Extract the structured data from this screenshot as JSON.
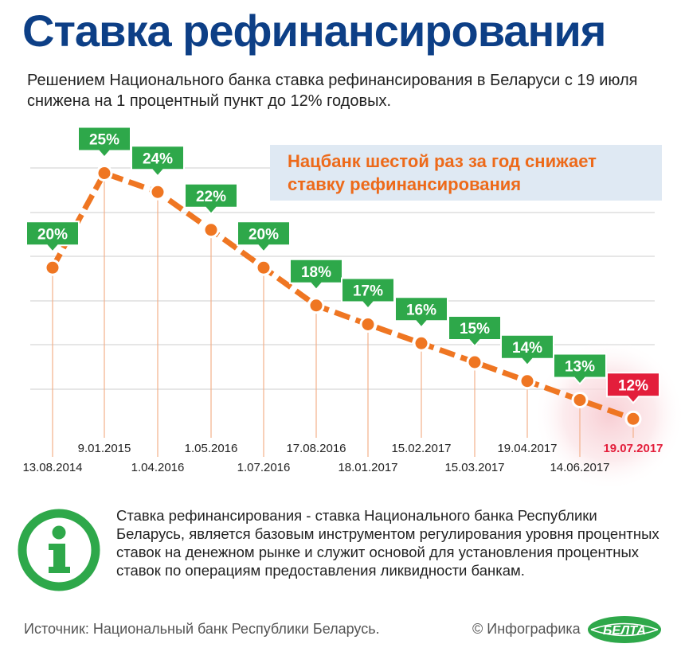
{
  "title": "Ставка рефинансирования",
  "subtitle": "Решением Национального банка ставка рефинансирования в Беларуси с 19 июля снижена на 1 процентный пункт до 12% годовых.",
  "callout": "Нацбанк шестой раз за год снижает ставку рефинансирования",
  "chart_data": {
    "type": "line",
    "x": [
      "13.08.2014",
      "9.01.2015",
      "1.04.2016",
      "1.05.2016",
      "1.07.2016",
      "17.08.2016",
      "18.01.2017",
      "15.02.2017",
      "15.03.2017",
      "19.04.2017",
      "14.06.2017",
      "19.07.2017"
    ],
    "values": [
      20,
      25,
      24,
      22,
      20,
      18,
      17,
      16,
      15,
      14,
      13,
      12
    ],
    "labels": [
      "20%",
      "25%",
      "24%",
      "22%",
      "20%",
      "18%",
      "17%",
      "16%",
      "15%",
      "14%",
      "13%",
      "12%"
    ],
    "highlight_index": 11,
    "ylim": [
      11,
      27
    ],
    "grid": true,
    "colors": {
      "line": "#ef7622",
      "label_green": "#2ea84a",
      "label_red": "#e31e3b",
      "date_red": "#e31e3b",
      "grid": "#cccccc"
    }
  },
  "info": {
    "icon": "info-icon",
    "text": "Ставка рефинансирования - ставка Национального банка Республики Беларусь, является базовым инструментом регулирования уровня процентных ставок на денежном рынке и служит основой для установления процентных ставок по операциям предоставления ликвидности банкам."
  },
  "footer": {
    "source": "Источник: Национальный банк Республики Беларусь.",
    "credit": "© Инфографика",
    "logo_text": "БЕЛТА"
  },
  "colors": {
    "title": "#0d3f86",
    "accent_orange": "#ed6a1a",
    "callout_bg": "#dfe9f3",
    "green": "#2ea84a"
  }
}
